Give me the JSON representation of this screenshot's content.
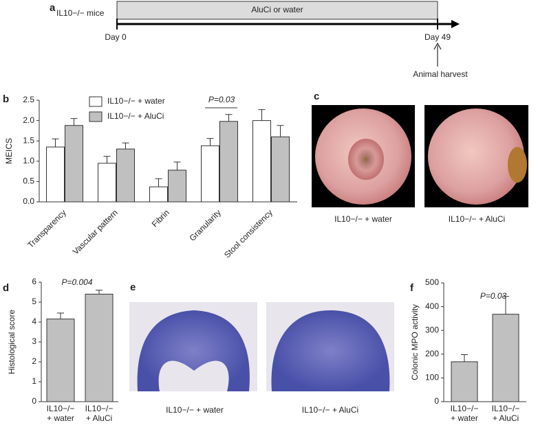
{
  "panel_a": {
    "label": "a",
    "group": "IL10−/− mice",
    "treatment": "AluCi or water",
    "start": "Day 0",
    "end": "Day 49",
    "event": "Animal harvest"
  },
  "panel_c": {
    "label": "c",
    "captions": [
      "IL10−/− + water",
      "IL10−/− + AluCi"
    ]
  },
  "panel_e": {
    "label": "e",
    "captions": [
      "IL10−/− + water",
      "IL10−/− + AluCi"
    ]
  },
  "chart_data": [
    {
      "type": "bar",
      "panel": "b",
      "ylabel": "MEICS",
      "categories": [
        "Transparency",
        "Vascular pattern",
        "Fibrin",
        "Granularity",
        "Stool consistency"
      ],
      "series": [
        {
          "name": "IL10−/− + water",
          "color": "#ffffff",
          "values": [
            1.35,
            0.95,
            0.37,
            1.38,
            2.0
          ],
          "errors": [
            0.2,
            0.17,
            0.2,
            0.18,
            0.27
          ]
        },
        {
          "name": "IL10−/− + AluCi",
          "color": "#c0c0c0",
          "values": [
            1.88,
            1.3,
            0.78,
            1.98,
            1.6
          ],
          "errors": [
            0.17,
            0.15,
            0.2,
            0.17,
            0.28
          ]
        }
      ],
      "ylim": [
        0,
        2.5
      ],
      "yticks": [
        {
          "value": 0,
          "label": "0.0"
        },
        0.5,
        {
          "value": 1,
          "label": "1.0"
        },
        1.5,
        {
          "value": 2,
          "label": "2.0"
        },
        2.5
      ],
      "annotation": "P=0.03"
    },
    {
      "type": "bar",
      "panel": "d",
      "ylabel": "Histological score",
      "categories": [
        [
          "IL10−/−",
          "+ water"
        ],
        [
          "IL10−/−",
          "+ AluCi"
        ]
      ],
      "values": [
        4.15,
        5.4
      ],
      "errors": [
        0.3,
        0.2
      ],
      "color": "#c0c0c0",
      "ylim": [
        0,
        6
      ],
      "yticks": [
        0,
        1,
        2,
        3,
        4,
        5,
        6
      ],
      "annotation": "P=0.004"
    },
    {
      "type": "bar",
      "panel": "f",
      "ylabel": "Colonic MPO activity",
      "categories": [
        [
          "IL10−/−",
          "+ water"
        ],
        [
          "IL10−/−",
          "+ AluCi"
        ]
      ],
      "values": [
        168,
        368
      ],
      "errors": [
        30,
        75
      ],
      "color": "#c0c0c0",
      "ylim": [
        0,
        500
      ],
      "yticks": [
        0,
        100,
        200,
        300,
        400,
        500
      ],
      "annotation": "P=0.03"
    }
  ]
}
